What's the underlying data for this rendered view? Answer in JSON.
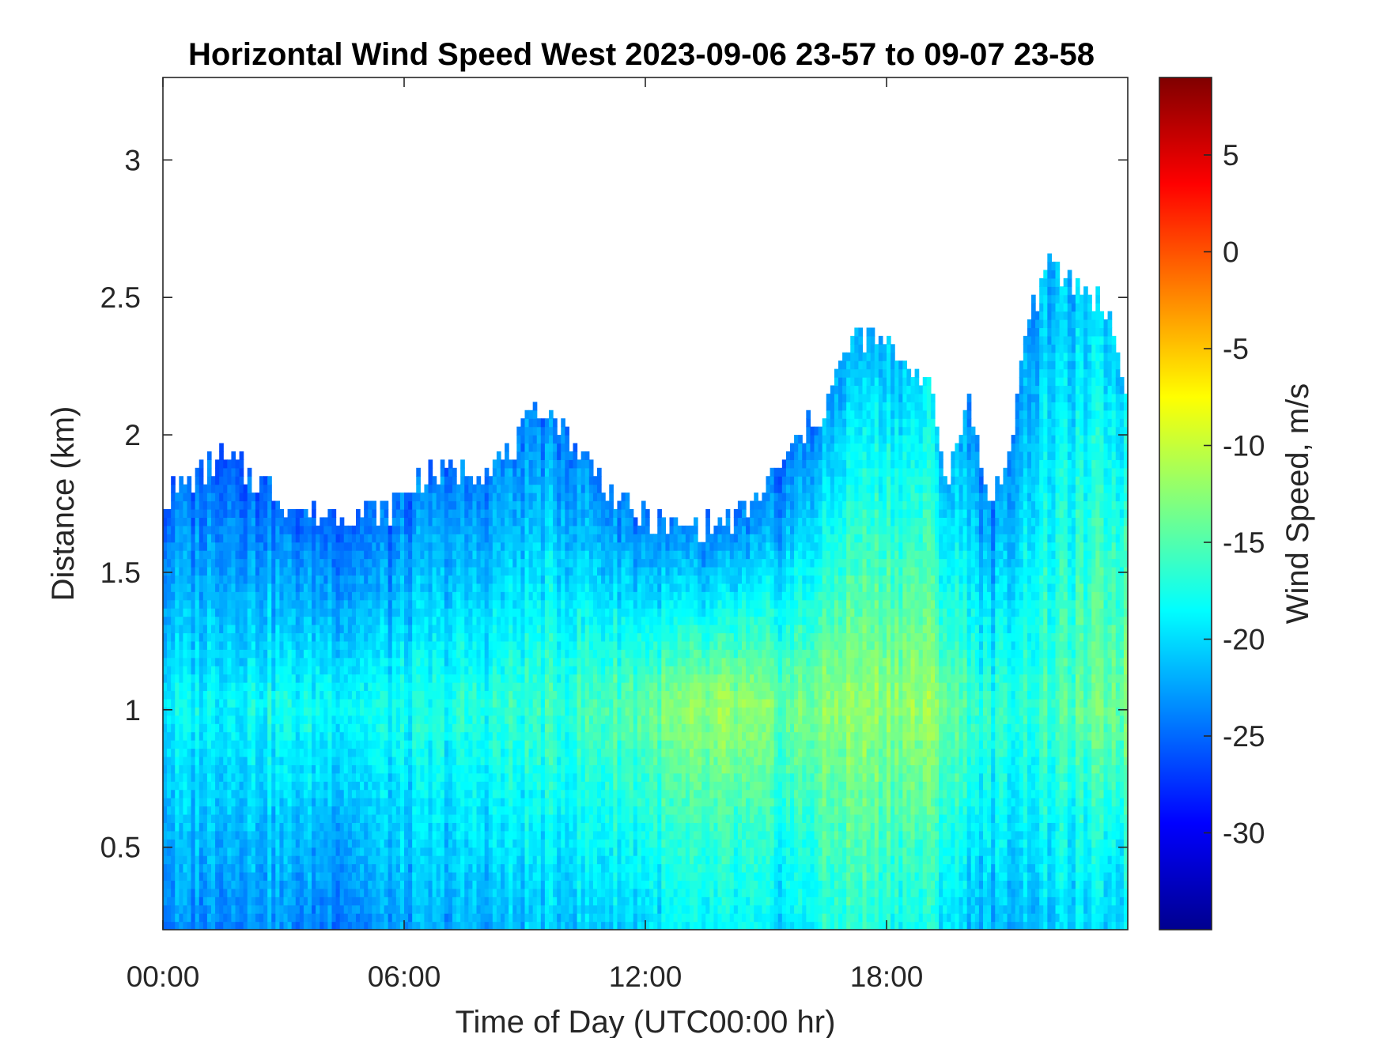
{
  "chart_data": {
    "type": "heatmap",
    "title": "Horizontal Wind Speed West 2023-09-06 23-57 to 09-07 23-58",
    "xlabel": "Time of Day (UTC00:00 hr)",
    "ylabel": "Distance (km)",
    "colorbar_label": "Wind Speed, m/s",
    "colormap": "jet",
    "xlim": [
      0,
      24
    ],
    "ylim": [
      0.2,
      3.3
    ],
    "clim": [
      -35,
      9
    ],
    "x_ticks": [
      0,
      6,
      12,
      18
    ],
    "x_tick_labels": [
      "00:00",
      "06:00",
      "12:00",
      "18:00"
    ],
    "y_ticks": [
      0.5,
      1,
      1.5,
      2,
      2.5,
      3
    ],
    "y_tick_labels": [
      "0.5",
      "1",
      "1.5",
      "2",
      "2.5",
      "3"
    ],
    "colorbar_ticks": [
      5,
      0,
      -5,
      -10,
      -15,
      -20,
      -25,
      -30
    ],
    "colorbar_tick_labels": [
      "5",
      "0",
      "-5",
      "-10",
      "-15",
      "-20",
      "-25",
      "-30"
    ],
    "grid": false,
    "top_boundary_km": {
      "hours": [
        0,
        1,
        1.5,
        2.5,
        3.5,
        4.5,
        5.5,
        6.5,
        7.5,
        8.5,
        9.5,
        10.5,
        11.5,
        12.5,
        13.5,
        14.5,
        15.5,
        16.5,
        17.2,
        18,
        19,
        19.5,
        20,
        20.5,
        21,
        21.5,
        22,
        22.5,
        23,
        23.5,
        24
      ],
      "values": [
        1.75,
        1.85,
        1.9,
        1.8,
        1.7,
        1.7,
        1.7,
        1.85,
        1.85,
        1.9,
        2.1,
        1.9,
        1.72,
        1.65,
        1.65,
        1.7,
        1.9,
        2.1,
        2.35,
        2.3,
        2.2,
        1.8,
        2.15,
        1.75,
        1.85,
        2.4,
        2.6,
        2.55,
        2.5,
        2.45,
        2.1
      ]
    },
    "mean_profile_m_s": {
      "hours": [
        0,
        2,
        4,
        6,
        8,
        10,
        12,
        14,
        15.5,
        17,
        19,
        20.5,
        22,
        24
      ],
      "at_0.5_km": [
        -22,
        -21,
        -22,
        -21,
        -20,
        -19,
        -18,
        -17,
        -18,
        -15,
        -16,
        -20,
        -19,
        -18
      ],
      "at_1_km": [
        -19,
        -18,
        -18,
        -18,
        -17,
        -16,
        -14,
        -12,
        -14,
        -12,
        -12,
        -17,
        -16,
        -13
      ],
      "near_top": [
        -25,
        -25,
        -25,
        -25,
        -24,
        -24,
        -24,
        -25,
        -25,
        -22,
        -20,
        -24,
        -22,
        -20
      ]
    }
  }
}
